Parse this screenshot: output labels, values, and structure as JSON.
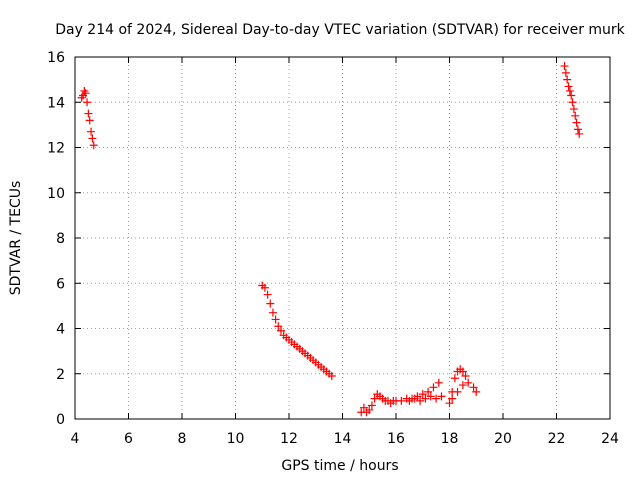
{
  "chart_data": {
    "type": "scatter",
    "title": "Day 214 of 2024, Sidereal Day-to-day VTEC variation (SDTVAR) for receiver murk",
    "xlabel": "GPS time / hours",
    "ylabel": "SDTVAR / TECUs",
    "xlim": [
      4,
      24
    ],
    "ylim": [
      0,
      16
    ],
    "xticks": [
      4,
      6,
      8,
      10,
      12,
      14,
      16,
      18,
      20,
      22,
      24
    ],
    "yticks": [
      0,
      2,
      4,
      6,
      8,
      10,
      12,
      14,
      16
    ],
    "grid": true,
    "marker": "+",
    "colors": {
      "series": "#ff0000",
      "axes": "#000000",
      "grid": "#a0a0a0"
    },
    "series": [
      {
        "name": "SDTVAR",
        "x": [
          4.25,
          4.3,
          4.35,
          4.4,
          4.45,
          4.5,
          4.55,
          4.6,
          4.65,
          4.7,
          11.0,
          11.1,
          11.2,
          11.3,
          11.4,
          11.5,
          11.6,
          11.7,
          11.8,
          11.9,
          12.0,
          12.1,
          12.2,
          12.3,
          12.4,
          12.5,
          12.6,
          12.7,
          12.8,
          12.9,
          13.0,
          13.1,
          13.2,
          13.3,
          13.4,
          13.5,
          13.6,
          14.7,
          14.8,
          14.9,
          15.0,
          15.1,
          15.2,
          15.3,
          15.4,
          15.5,
          15.6,
          15.7,
          15.8,
          15.9,
          16.0,
          16.2,
          16.4,
          16.6,
          16.8,
          17.0,
          17.2,
          17.4,
          17.6,
          16.5,
          16.7,
          16.9,
          17.1,
          17.3,
          17.5,
          17.7,
          18.0,
          18.1,
          18.2,
          18.3,
          18.4,
          18.5,
          18.6,
          18.1,
          18.3,
          18.5,
          18.7,
          18.9,
          19.0,
          22.3,
          22.35,
          22.4,
          22.45,
          22.5,
          22.55,
          22.6,
          22.65,
          22.7,
          22.75,
          22.8,
          22.85
        ],
        "y": [
          14.2,
          14.3,
          14.5,
          14.4,
          14.0,
          13.5,
          13.2,
          12.7,
          12.4,
          12.1,
          5.9,
          5.8,
          5.5,
          5.1,
          4.7,
          4.4,
          4.1,
          3.9,
          3.7,
          3.6,
          3.5,
          3.4,
          3.3,
          3.2,
          3.1,
          3.0,
          2.9,
          2.8,
          2.7,
          2.6,
          2.5,
          2.4,
          2.3,
          2.2,
          2.1,
          2.0,
          1.9,
          0.3,
          0.5,
          0.3,
          0.4,
          0.6,
          0.9,
          1.1,
          1.0,
          0.9,
          0.8,
          0.8,
          0.7,
          0.8,
          0.8,
          0.8,
          0.9,
          0.9,
          1.0,
          1.1,
          1.2,
          1.4,
          1.6,
          0.8,
          0.9,
          0.8,
          0.9,
          1.0,
          0.9,
          1.0,
          0.7,
          1.2,
          1.8,
          2.1,
          2.2,
          2.1,
          1.9,
          0.9,
          1.2,
          1.5,
          1.6,
          1.4,
          1.2,
          15.6,
          15.3,
          15.0,
          14.7,
          14.5,
          14.3,
          14.0,
          13.7,
          13.4,
          13.1,
          12.8,
          12.6
        ]
      }
    ]
  }
}
